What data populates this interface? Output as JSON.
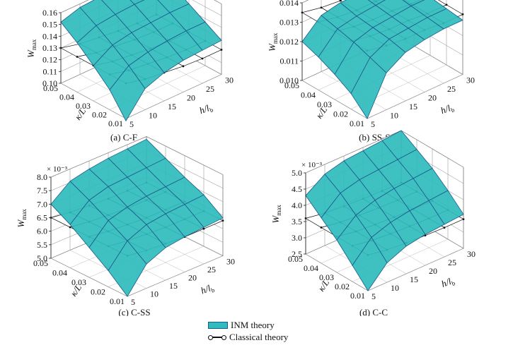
{
  "legend": {
    "inm_label": "INM theory",
    "classical_label": "Classical theory",
    "inm_color": "#2fbcbc",
    "inm_edge": "#1a5a8a",
    "classical_color": "#111111"
  },
  "chart_data": [
    {
      "type": "surface",
      "caption": "(a) C-F",
      "ylabel": "W",
      "ylabel_sub": "max",
      "xlabel": "κ/L",
      "zlabel": "h/l",
      "zlabel_sub": "b",
      "exponent": "",
      "kappa_ticks": [
        "0.01",
        "0.02",
        "0.03",
        "0.04",
        "0.05"
      ],
      "h_ticks": [
        "5",
        "10",
        "15",
        "20",
        "25",
        "30"
      ],
      "w_ticks": [
        "0.10",
        "0.11",
        "0.12",
        "0.13",
        "0.14",
        "0.15",
        "0.16"
      ],
      "wlim": [
        0.1,
        0.16
      ],
      "kappa": [
        0.01,
        0.02,
        0.03,
        0.04,
        0.05
      ],
      "h": [
        5,
        10,
        15,
        20,
        25,
        30
      ],
      "inm_w": [
        [
          0.098,
          0.118,
          0.124,
          0.127,
          0.128,
          0.129
        ],
        [
          0.117,
          0.13,
          0.134,
          0.136,
          0.137,
          0.137
        ],
        [
          0.13,
          0.14,
          0.143,
          0.144,
          0.145,
          0.145
        ],
        [
          0.142,
          0.149,
          0.151,
          0.152,
          0.152,
          0.153
        ],
        [
          0.152,
          0.157,
          0.158,
          0.159,
          0.159,
          0.16
        ]
      ],
      "classical_w": [
        0.13,
        0.126,
        0.124,
        0.122,
        0.121,
        0.121
      ]
    },
    {
      "type": "surface",
      "caption": "(b) SS-SS",
      "ylabel": "W",
      "ylabel_sub": "max",
      "xlabel": "κ/L",
      "zlabel": "h/l",
      "zlabel_sub": "b",
      "exponent": "",
      "kappa_ticks": [
        "0.01",
        "0.02",
        "0.03",
        "0.04",
        "0.05"
      ],
      "h_ticks": [
        "5",
        "10",
        "15",
        "20",
        "25",
        "30"
      ],
      "w_ticks": [
        "0.010",
        "0.011",
        "0.012",
        "0.013",
        "0.014"
      ],
      "wlim": [
        0.01,
        0.014
      ],
      "kappa": [
        0.01,
        0.02,
        0.03,
        0.04,
        0.05
      ],
      "h": [
        5,
        10,
        15,
        20,
        25,
        30
      ],
      "inm_w": [
        [
          0.01,
          0.0119,
          0.0125,
          0.0127,
          0.0128,
          0.0128
        ],
        [
          0.0108,
          0.0122,
          0.0127,
          0.0128,
          0.0129,
          0.0129
        ],
        [
          0.0113,
          0.0125,
          0.0128,
          0.0129,
          0.013,
          0.013
        ],
        [
          0.0117,
          0.0127,
          0.0129,
          0.013,
          0.0131,
          0.0131
        ],
        [
          0.012,
          0.0129,
          0.0131,
          0.0131,
          0.0131,
          0.0132
        ]
      ],
      "classical_w": [
        0.0135,
        0.0133,
        0.0132,
        0.0132,
        0.0131,
        0.0131
      ]
    },
    {
      "type": "surface",
      "caption": "(c) C-SS",
      "ylabel": "W",
      "ylabel_sub": "max",
      "xlabel": "κ/L",
      "zlabel": "h/l",
      "zlabel_sub": "b",
      "exponent": "× 10⁻³",
      "kappa_ticks": [
        "0.01",
        "0.02",
        "0.03",
        "0.04",
        "0.05"
      ],
      "h_ticks": [
        "5",
        "10",
        "15",
        "20",
        "25",
        "30"
      ],
      "w_ticks": [
        "5.0",
        "5.5",
        "6.0",
        "6.5",
        "7.0",
        "7.5",
        "8.0"
      ],
      "wlim": [
        5.0,
        8.0
      ],
      "kappa": [
        0.01,
        0.02,
        0.03,
        0.04,
        0.05
      ],
      "h": [
        5,
        10,
        15,
        20,
        25,
        30
      ],
      "inm_w": [
        [
          5.0,
          5.9,
          6.2,
          6.3,
          6.35,
          6.4
        ],
        [
          5.6,
          6.4,
          6.7,
          6.8,
          6.85,
          6.9
        ],
        [
          6.1,
          6.8,
          7.0,
          7.1,
          7.15,
          7.2
        ],
        [
          6.6,
          7.2,
          7.4,
          7.45,
          7.5,
          7.55
        ],
        [
          7.0,
          7.55,
          7.7,
          7.8,
          7.85,
          7.9
        ]
      ],
      "classical_w": [
        6.5,
        6.4,
        6.35,
        6.3,
        6.3,
        6.3
      ]
    },
    {
      "type": "surface",
      "caption": "(d) C-C",
      "ylabel": "W",
      "ylabel_sub": "max",
      "xlabel": "κ/L",
      "zlabel": "h/l",
      "zlabel_sub": "b",
      "exponent": "× 10⁻³",
      "kappa_ticks": [
        "0.01",
        "0.02",
        "0.03",
        "0.04",
        "0.05"
      ],
      "h_ticks": [
        "5",
        "10",
        "15",
        "20",
        "25",
        "30"
      ],
      "w_ticks": [
        "2.5",
        "3.0",
        "3.5",
        "4.0",
        "4.5",
        "5.0"
      ],
      "wlim": [
        2.5,
        5.0
      ],
      "kappa": [
        0.01,
        0.02,
        0.03,
        0.04,
        0.05
      ],
      "h": [
        5,
        10,
        15,
        20,
        25,
        30
      ],
      "inm_w": [
        [
          2.5,
          3.1,
          3.35,
          3.45,
          3.5,
          3.55
        ],
        [
          3.0,
          3.6,
          3.8,
          3.9,
          3.95,
          4.0
        ],
        [
          3.5,
          4.0,
          4.2,
          4.3,
          4.35,
          4.4
        ],
        [
          3.9,
          4.4,
          4.55,
          4.6,
          4.65,
          4.7
        ],
        [
          4.3,
          4.7,
          4.85,
          4.9,
          4.95,
          5.0
        ]
      ],
      "classical_w": [
        3.6,
        3.5,
        3.45,
        3.42,
        3.4,
        3.4
      ]
    }
  ]
}
